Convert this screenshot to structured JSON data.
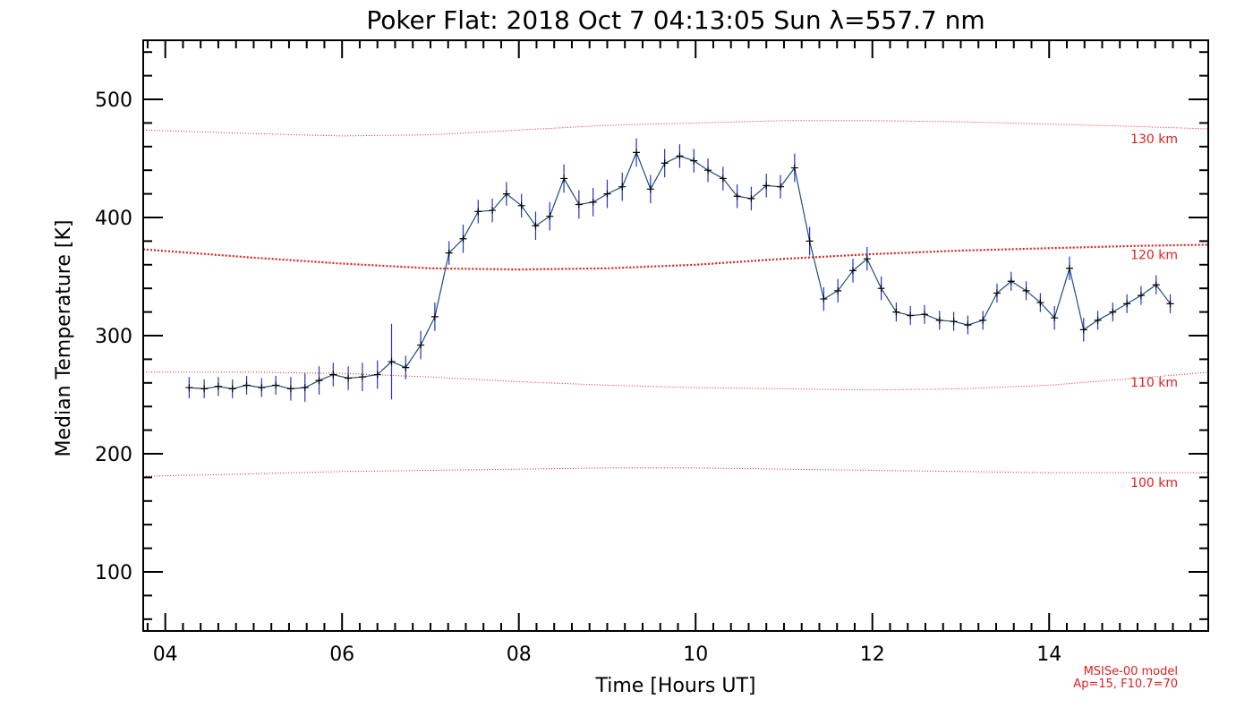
{
  "chart_data": {
    "type": "line",
    "title": "Poker Flat: 2018 Oct  7 04:13:05 Sun λ=557.7 nm",
    "xlabel": "Time [Hours UT]",
    "ylabel": "Median Temperature [K]",
    "xlim": [
      3.75,
      15.8
    ],
    "ylim": [
      50,
      550
    ],
    "x_ticks": [
      {
        "value": 4,
        "label": "04"
      },
      {
        "value": 6,
        "label": "06"
      },
      {
        "value": 8,
        "label": "08"
      },
      {
        "value": 10,
        "label": "10"
      },
      {
        "value": 12,
        "label": "12"
      },
      {
        "value": 14,
        "label": "14"
      }
    ],
    "y_ticks": [
      {
        "value": 100,
        "label": "100"
      },
      {
        "value": 200,
        "label": "200"
      },
      {
        "value": 300,
        "label": "300"
      },
      {
        "value": 400,
        "label": "400"
      },
      {
        "value": 500,
        "label": "500"
      }
    ],
    "grid": false,
    "colors": {
      "data_line": "#1f4f7a",
      "error_bars": "#2233cc",
      "markers": "#000000",
      "model": "#e02020"
    },
    "series": [
      {
        "x": [
          4.27,
          4.44,
          4.6,
          4.76,
          4.92,
          5.09,
          5.25,
          5.42,
          5.58,
          5.74,
          5.9,
          6.07,
          6.23,
          6.4,
          6.56,
          6.72,
          6.89,
          7.05,
          7.21,
          7.37,
          7.54,
          7.7,
          7.86,
          8.03,
          8.19,
          8.35,
          8.51,
          8.68,
          8.84,
          9.0,
          9.17,
          9.33,
          9.49,
          9.65,
          9.82,
          9.98,
          10.14,
          10.31,
          10.47,
          10.63,
          10.8,
          10.96,
          11.12,
          11.29,
          11.45,
          11.61,
          11.78,
          11.94,
          12.1,
          12.27,
          12.43,
          12.59,
          12.76,
          12.92,
          13.08,
          13.25,
          13.41,
          13.57,
          13.74,
          13.9,
          14.06,
          14.23,
          14.39,
          14.55,
          14.72,
          14.88,
          15.04,
          15.21,
          15.37
        ],
        "y": [
          256,
          255,
          257,
          255,
          258,
          256,
          258,
          255,
          256,
          262,
          267,
          264,
          265,
          267,
          278,
          273,
          292,
          316,
          370,
          382,
          405,
          406,
          420,
          410,
          393,
          401,
          433,
          411,
          413,
          420,
          426,
          455,
          424,
          446,
          452,
          448,
          440,
          433,
          418,
          416,
          427,
          426,
          442,
          380,
          331,
          338,
          355,
          365,
          340,
          320,
          317,
          318,
          313,
          312,
          309,
          313,
          336,
          346,
          338,
          328,
          315,
          357,
          305,
          313,
          320,
          327,
          334,
          343,
          327
        ],
        "err": [
          9,
          8,
          8,
          8,
          8,
          8,
          8,
          10,
          12,
          12,
          10,
          10,
          12,
          12,
          32,
          10,
          12,
          12,
          10,
          12,
          10,
          10,
          10,
          10,
          12,
          12,
          12,
          12,
          12,
          12,
          12,
          12,
          12,
          12,
          10,
          10,
          10,
          10,
          10,
          10,
          10,
          10,
          12,
          12,
          10,
          10,
          10,
          10,
          10,
          8,
          8,
          8,
          8,
          8,
          8,
          8,
          8,
          8,
          8,
          8,
          10,
          10,
          10,
          8,
          8,
          8,
          8,
          8,
          8
        ]
      }
    ],
    "model_curves": [
      {
        "label": "130 km",
        "x": [
          3.75,
          5,
          6,
          7,
          8,
          9,
          10,
          11,
          12,
          13,
          14,
          15,
          15.8
        ],
        "y": [
          474,
          471,
          469,
          470,
          474,
          478,
          480,
          482,
          482,
          481,
          479,
          477,
          475
        ]
      },
      {
        "label": "120 km",
        "x": [
          3.75,
          5,
          6,
          7,
          8,
          9,
          10,
          11,
          12,
          13,
          14,
          15,
          15.8
        ],
        "y": [
          373,
          366,
          361,
          357,
          356,
          357,
          360,
          365,
          369,
          372,
          374,
          376,
          377
        ]
      },
      {
        "label": "110 km",
        "x": [
          3.75,
          5,
          6,
          7,
          8,
          9,
          10,
          11,
          12,
          13,
          14,
          15,
          15.8
        ],
        "y": [
          269,
          269,
          268,
          265,
          261,
          258,
          256,
          255,
          254,
          255,
          258,
          264,
          269
        ]
      },
      {
        "label": "100 km",
        "x": [
          3.75,
          5,
          6,
          7,
          8,
          9,
          10,
          11,
          12,
          13,
          14,
          15,
          15.8
        ],
        "y": [
          181,
          183,
          185,
          186,
          187,
          188,
          188,
          187,
          186,
          185,
          184,
          184,
          184
        ]
      }
    ],
    "annotation": {
      "line1": "MSISe-00 model",
      "line2": "Ap=15, F10.7=70"
    }
  }
}
